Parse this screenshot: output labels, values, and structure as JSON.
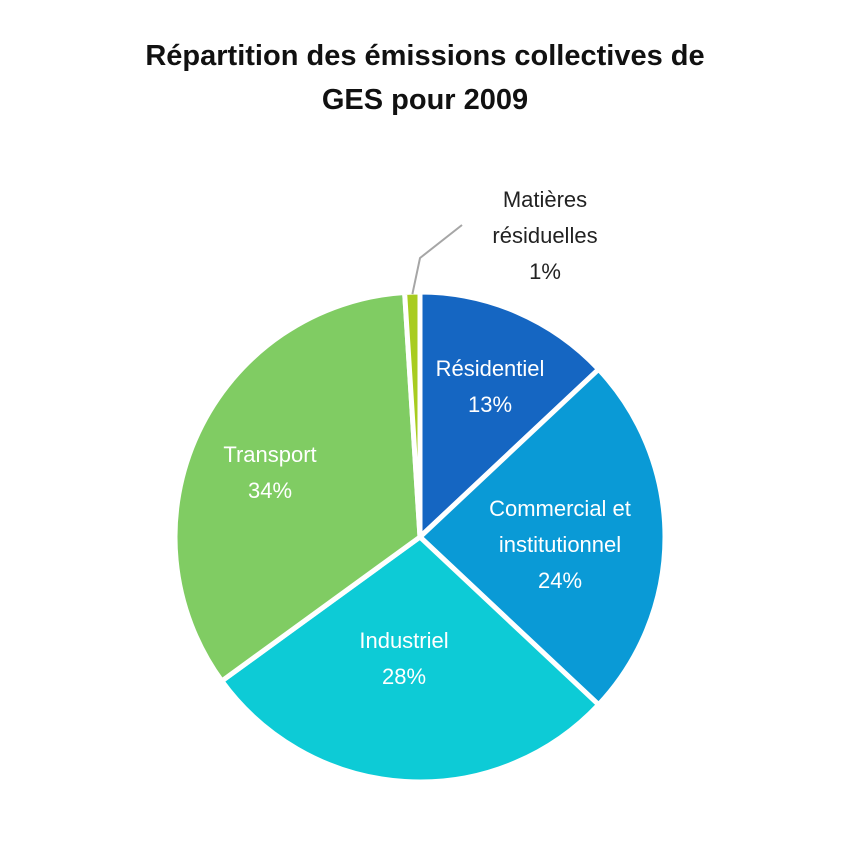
{
  "chart_data": {
    "type": "pie",
    "title_lines": [
      "Répartition des émissions collectives de",
      "GES pour 2009"
    ],
    "slices": [
      {
        "label_lines": [
          "Résidentiel"
        ],
        "value": 13,
        "value_label": "13%",
        "color": "#1566c2",
        "label_color": "#ffffff"
      },
      {
        "label_lines": [
          "Commercial et",
          "institutionnel"
        ],
        "value": 24,
        "value_label": "24%",
        "color": "#0a9ad6",
        "label_color": "#ffffff"
      },
      {
        "label_lines": [
          "Industriel"
        ],
        "value": 28,
        "value_label": "28%",
        "color": "#0dcbd6",
        "label_color": "#ffffff"
      },
      {
        "label_lines": [
          "Transport"
        ],
        "value": 34,
        "value_label": "34%",
        "color": "#80cc63",
        "label_color": "#ffffff"
      },
      {
        "label_lines": [
          "Matières",
          "résiduelles"
        ],
        "value": 1,
        "value_label": "1%",
        "color": "#a8cc20",
        "label_color": "#222222",
        "leader_line": true
      }
    ],
    "start_angle_deg": 0,
    "direction": "clockwise",
    "legend": "none"
  }
}
